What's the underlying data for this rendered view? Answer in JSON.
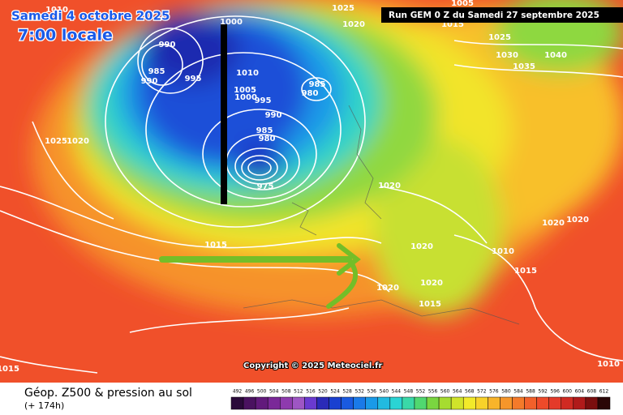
{
  "header": {
    "date": "Samedi 4 octobre 2025",
    "time": "7:00 locale",
    "run": "Run GEM 0 Z du Samedi 27 septembre 2025"
  },
  "copyright": "Copyright © 2025 Meteociel.fr",
  "footer": {
    "title": "Géop. Z500 & pression au sol",
    "subtitle": "(+ 174h)"
  },
  "isobar_labels": [
    1010,
    1025,
    1005,
    1020,
    1015,
    1000,
    990,
    985,
    990,
    995,
    1010,
    1005,
    1000,
    995,
    985,
    980,
    990,
    985,
    980,
    975,
    1025,
    1030,
    1035,
    1040,
    1025,
    1020,
    1020,
    1015,
    1020,
    1010,
    1020,
    1020,
    1015,
    1020,
    1020,
    1015,
    1015,
    1010
  ],
  "legend": {
    "labels": [
      492,
      496,
      500,
      504,
      508,
      512,
      516,
      520,
      524,
      528,
      532,
      536,
      540,
      544,
      548,
      552,
      556,
      560,
      564,
      568,
      572,
      576,
      580,
      584,
      588,
      592,
      596,
      600,
      604,
      608,
      612
    ],
    "colors": [
      "#2a0a3a",
      "#4a1260",
      "#621a7c",
      "#7a2898",
      "#8e3aae",
      "#9e56c4",
      "#6a3ad0",
      "#2a2ab8",
      "#1a40d0",
      "#1a5ae0",
      "#1a7ae8",
      "#1a9ae8",
      "#22bae0",
      "#2ad4d4",
      "#3ad8a8",
      "#50d870",
      "#7ad640",
      "#a6dc30",
      "#d0e42a",
      "#f2ea2a",
      "#f8d22a",
      "#f8b42a",
      "#f6962a",
      "#f47a2a",
      "#f2602a",
      "#ee4a2a",
      "#e43a2a",
      "#d02a22",
      "#b01a1a",
      "#7a0e0e",
      "#2a0606"
    ]
  }
}
